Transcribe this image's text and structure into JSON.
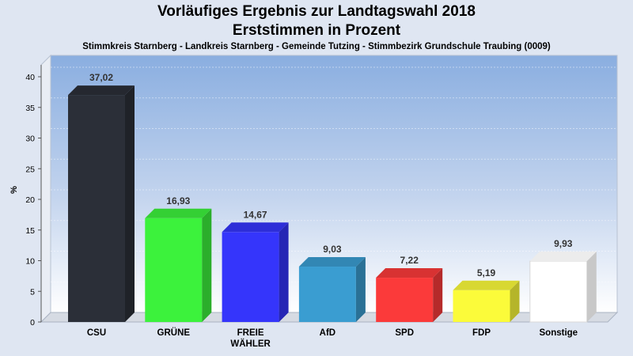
{
  "chart_data": {
    "type": "bar",
    "title": "Vorläufiges Ergebnis zur Landtagswahl 2018",
    "subtitle": "Erststimmen in Prozent",
    "caption": "Stimmkreis Starnberg - Landkreis Starnberg - Gemeinde Tutzing - Stimmbezirk Grundschule Traubing (0009)",
    "ylabel": "%",
    "xlabel": "",
    "ylim": [
      0,
      40
    ],
    "yticks": [
      "0",
      "5",
      "10",
      "15",
      "20",
      "25",
      "30",
      "35",
      "40"
    ],
    "grid": true,
    "legend": "none",
    "categories": [
      "CSU",
      "GRÜNE",
      "FREIE\nWÄHLER",
      "AfD",
      "SPD",
      "FDP",
      "Sonstige"
    ],
    "values": [
      37.02,
      16.93,
      14.67,
      9.03,
      7.22,
      5.19,
      9.93
    ],
    "value_labels": [
      "37,02",
      "16,93",
      "14,67",
      "9,03",
      "7,22",
      "5,19",
      "9,93"
    ],
    "colors": [
      "#2b2f38",
      "#3cf23c",
      "#3535fb",
      "#3a9dd1",
      "#fb3a3a",
      "#fbfb3a",
      "#ffffff"
    ]
  }
}
